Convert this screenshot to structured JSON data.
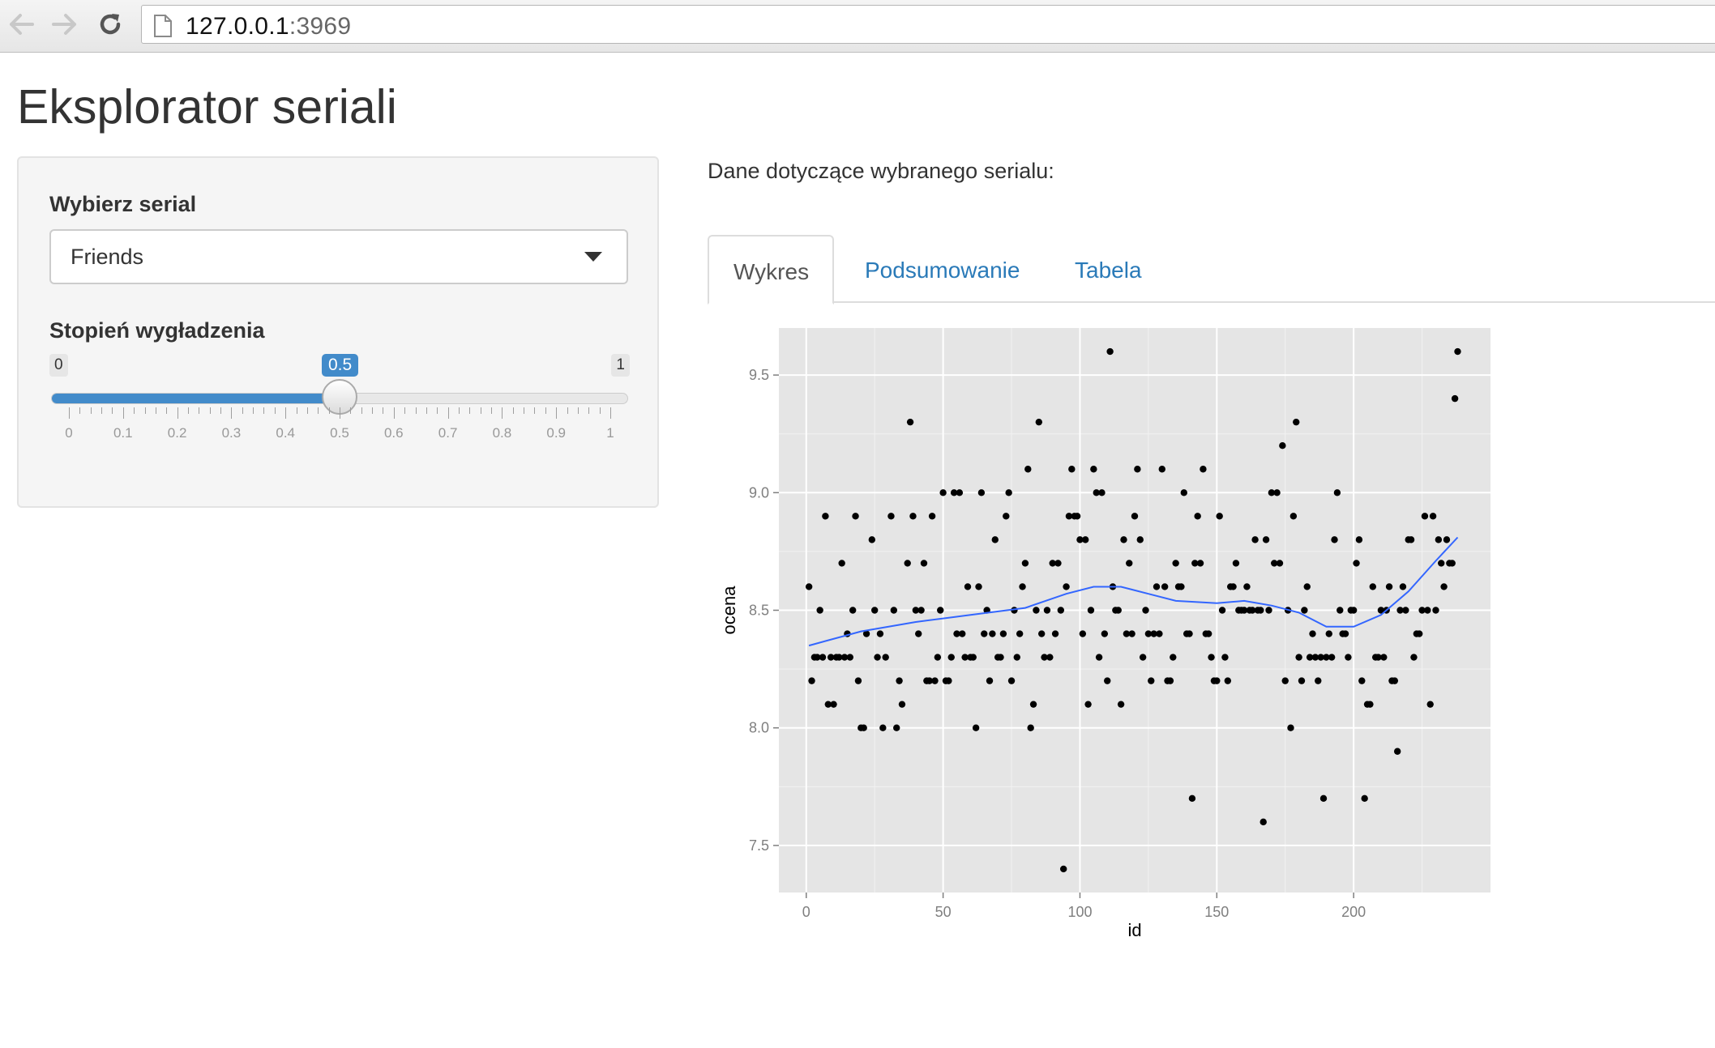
{
  "browser": {
    "url_host": "127.0.0.1",
    "url_port": ":3969"
  },
  "page": {
    "title": "Eksplorator seriali"
  },
  "sidebar": {
    "series_label": "Wybierz serial",
    "series_selected": "Friends",
    "smoothing_label": "Stopień wygładzenia",
    "slider": {
      "min": 0,
      "max": 1,
      "value": 0.5,
      "min_label": "0",
      "max_label": "1",
      "value_label": "0.5",
      "tick_labels": [
        "0",
        "0.1",
        "0.2",
        "0.3",
        "0.4",
        "0.5",
        "0.6",
        "0.7",
        "0.8",
        "0.9",
        "1"
      ]
    }
  },
  "main": {
    "description": "Dane dotyczące wybranego serialu:",
    "tabs": [
      {
        "label": "Wykres",
        "active": true
      },
      {
        "label": "Podsumowanie",
        "active": false
      },
      {
        "label": "Tabela",
        "active": false
      }
    ]
  },
  "colors": {
    "accent": "#428bca",
    "tab_link": "#2a7ab8",
    "plot_panel": "#e5e5e5",
    "points": "#000000",
    "smooth_line": "#3366ff"
  },
  "chart_data": {
    "type": "scatter",
    "xlabel": "id",
    "ylabel": "ocena",
    "xlim": [
      -10,
      250
    ],
    "ylim": [
      7.3,
      9.7
    ],
    "x_ticks": [
      0,
      50,
      100,
      150,
      200
    ],
    "x_tick_labels": [
      "0",
      "50",
      "100",
      "150",
      "200"
    ],
    "y_ticks": [
      7.5,
      8.0,
      8.5,
      9.0,
      9.5
    ],
    "y_tick_labels": [
      "7.5",
      "8.0",
      "8.5",
      "9.0",
      "9.5"
    ],
    "grid": true,
    "points": [
      [
        1,
        8.6
      ],
      [
        2,
        8.2
      ],
      [
        3,
        8.3
      ],
      [
        4,
        8.3
      ],
      [
        5,
        8.5
      ],
      [
        6,
        8.3
      ],
      [
        7,
        8.9
      ],
      [
        8,
        8.1
      ],
      [
        9,
        8.3
      ],
      [
        10,
        8.1
      ],
      [
        11,
        8.3
      ],
      [
        12,
        8.3
      ],
      [
        13,
        8.7
      ],
      [
        14,
        8.3
      ],
      [
        15,
        8.4
      ],
      [
        16,
        8.3
      ],
      [
        17,
        8.5
      ],
      [
        18,
        8.9
      ],
      [
        19,
        8.2
      ],
      [
        20,
        8.0
      ],
      [
        21,
        8.0
      ],
      [
        22,
        8.4
      ],
      [
        24,
        8.8
      ],
      [
        25,
        8.5
      ],
      [
        26,
        8.3
      ],
      [
        27,
        8.4
      ],
      [
        28,
        8.0
      ],
      [
        29,
        8.3
      ],
      [
        31,
        8.9
      ],
      [
        32,
        8.5
      ],
      [
        33,
        8.0
      ],
      [
        34,
        8.2
      ],
      [
        35,
        8.1
      ],
      [
        37,
        8.7
      ],
      [
        38,
        9.3
      ],
      [
        39,
        8.9
      ],
      [
        40,
        8.5
      ],
      [
        41,
        8.4
      ],
      [
        42,
        8.5
      ],
      [
        43,
        8.7
      ],
      [
        44,
        8.2
      ],
      [
        45,
        8.2
      ],
      [
        46,
        8.9
      ],
      [
        47,
        8.2
      ],
      [
        48,
        8.3
      ],
      [
        49,
        8.5
      ],
      [
        50,
        9.0
      ],
      [
        51,
        8.2
      ],
      [
        52,
        8.2
      ],
      [
        53,
        8.3
      ],
      [
        54,
        9.0
      ],
      [
        55,
        8.4
      ],
      [
        56,
        9.0
      ],
      [
        57,
        8.4
      ],
      [
        58,
        8.3
      ],
      [
        59,
        8.6
      ],
      [
        60,
        8.3
      ],
      [
        61,
        8.3
      ],
      [
        62,
        8.0
      ],
      [
        63,
        8.6
      ],
      [
        64,
        9.0
      ],
      [
        65,
        8.4
      ],
      [
        66,
        8.5
      ],
      [
        67,
        8.2
      ],
      [
        68,
        8.4
      ],
      [
        69,
        8.8
      ],
      [
        70,
        8.3
      ],
      [
        71,
        8.3
      ],
      [
        72,
        8.4
      ],
      [
        73,
        8.9
      ],
      [
        74,
        9.0
      ],
      [
        75,
        8.2
      ],
      [
        76,
        8.5
      ],
      [
        77,
        8.3
      ],
      [
        78,
        8.4
      ],
      [
        79,
        8.6
      ],
      [
        80,
        8.7
      ],
      [
        81,
        9.1
      ],
      [
        82,
        8.0
      ],
      [
        83,
        8.1
      ],
      [
        84,
        8.5
      ],
      [
        85,
        9.3
      ],
      [
        86,
        8.4
      ],
      [
        87,
        8.3
      ],
      [
        88,
        8.5
      ],
      [
        89,
        8.3
      ],
      [
        90,
        8.7
      ],
      [
        91,
        8.4
      ],
      [
        92,
        8.7
      ],
      [
        93,
        8.5
      ],
      [
        94,
        7.4
      ],
      [
        95,
        8.6
      ],
      [
        96,
        8.9
      ],
      [
        97,
        9.1
      ],
      [
        98,
        8.9
      ],
      [
        99,
        8.9
      ],
      [
        100,
        8.8
      ],
      [
        101,
        8.4
      ],
      [
        102,
        8.8
      ],
      [
        103,
        8.1
      ],
      [
        104,
        8.5
      ],
      [
        105,
        9.1
      ],
      [
        106,
        9.0
      ],
      [
        107,
        8.3
      ],
      [
        108,
        9.0
      ],
      [
        109,
        8.4
      ],
      [
        110,
        8.2
      ],
      [
        111,
        9.6
      ],
      [
        112,
        8.6
      ],
      [
        113,
        8.5
      ],
      [
        114,
        8.5
      ],
      [
        115,
        8.1
      ],
      [
        116,
        8.8
      ],
      [
        117,
        8.4
      ],
      [
        118,
        8.7
      ],
      [
        119,
        8.4
      ],
      [
        120,
        8.9
      ],
      [
        121,
        9.1
      ],
      [
        122,
        8.8
      ],
      [
        123,
        8.3
      ],
      [
        124,
        8.5
      ],
      [
        125,
        8.4
      ],
      [
        126,
        8.2
      ],
      [
        127,
        8.4
      ],
      [
        128,
        8.6
      ],
      [
        129,
        8.4
      ],
      [
        130,
        9.1
      ],
      [
        131,
        8.6
      ],
      [
        132,
        8.2
      ],
      [
        133,
        8.2
      ],
      [
        134,
        8.3
      ],
      [
        135,
        8.7
      ],
      [
        136,
        8.6
      ],
      [
        137,
        8.6
      ],
      [
        138,
        9.0
      ],
      [
        139,
        8.4
      ],
      [
        140,
        8.4
      ],
      [
        141,
        7.7
      ],
      [
        142,
        8.7
      ],
      [
        143,
        8.9
      ],
      [
        144,
        8.7
      ],
      [
        145,
        9.1
      ],
      [
        146,
        8.4
      ],
      [
        147,
        8.4
      ],
      [
        148,
        8.3
      ],
      [
        149,
        8.2
      ],
      [
        150,
        8.2
      ],
      [
        151,
        8.9
      ],
      [
        152,
        8.5
      ],
      [
        153,
        8.3
      ],
      [
        154,
        8.2
      ],
      [
        155,
        8.6
      ],
      [
        156,
        8.6
      ],
      [
        157,
        8.7
      ],
      [
        158,
        8.5
      ],
      [
        159,
        8.5
      ],
      [
        160,
        8.5
      ],
      [
        161,
        8.6
      ],
      [
        162,
        8.5
      ],
      [
        163,
        8.5
      ],
      [
        164,
        8.8
      ],
      [
        165,
        8.5
      ],
      [
        166,
        8.5
      ],
      [
        167,
        7.6
      ],
      [
        168,
        8.8
      ],
      [
        169,
        8.5
      ],
      [
        170,
        9.0
      ],
      [
        171,
        8.7
      ],
      [
        172,
        9.0
      ],
      [
        173,
        8.7
      ],
      [
        174,
        9.2
      ],
      [
        175,
        8.2
      ],
      [
        176,
        8.5
      ],
      [
        177,
        8.0
      ],
      [
        178,
        8.9
      ],
      [
        179,
        9.3
      ],
      [
        180,
        8.3
      ],
      [
        181,
        8.2
      ],
      [
        182,
        8.5
      ],
      [
        183,
        8.6
      ],
      [
        184,
        8.3
      ],
      [
        185,
        8.4
      ],
      [
        186,
        8.3
      ],
      [
        187,
        8.2
      ],
      [
        188,
        8.3
      ],
      [
        189,
        7.7
      ],
      [
        190,
        8.3
      ],
      [
        191,
        8.4
      ],
      [
        192,
        8.3
      ],
      [
        193,
        8.8
      ],
      [
        194,
        9.0
      ],
      [
        195,
        8.5
      ],
      [
        196,
        8.4
      ],
      [
        197,
        8.4
      ],
      [
        198,
        8.3
      ],
      [
        199,
        8.5
      ],
      [
        200,
        8.5
      ],
      [
        201,
        8.7
      ],
      [
        202,
        8.8
      ],
      [
        203,
        8.2
      ],
      [
        204,
        7.7
      ],
      [
        205,
        8.1
      ],
      [
        206,
        8.1
      ],
      [
        207,
        8.6
      ],
      [
        208,
        8.3
      ],
      [
        209,
        8.3
      ],
      [
        210,
        8.5
      ],
      [
        211,
        8.3
      ],
      [
        212,
        8.5
      ],
      [
        213,
        8.6
      ],
      [
        214,
        8.2
      ],
      [
        215,
        8.2
      ],
      [
        216,
        7.9
      ],
      [
        217,
        8.5
      ],
      [
        218,
        8.6
      ],
      [
        219,
        8.5
      ],
      [
        220,
        8.8
      ],
      [
        221,
        8.8
      ],
      [
        222,
        8.3
      ],
      [
        223,
        8.4
      ],
      [
        224,
        8.4
      ],
      [
        225,
        8.5
      ],
      [
        226,
        8.9
      ],
      [
        227,
        8.5
      ],
      [
        228,
        8.1
      ],
      [
        229,
        8.9
      ],
      [
        230,
        8.5
      ],
      [
        231,
        8.8
      ],
      [
        232,
        8.7
      ],
      [
        233,
        8.6
      ],
      [
        234,
        8.8
      ],
      [
        235,
        8.7
      ],
      [
        236,
        8.7
      ],
      [
        237,
        9.4
      ],
      [
        238,
        9.6
      ]
    ],
    "smooth": {
      "x": [
        1,
        20,
        40,
        60,
        80,
        95,
        105,
        115,
        125,
        135,
        150,
        160,
        170,
        180,
        190,
        200,
        210,
        220,
        230,
        238
      ],
      "y": [
        8.35,
        8.41,
        8.45,
        8.48,
        8.51,
        8.57,
        8.6,
        8.6,
        8.57,
        8.54,
        8.53,
        8.54,
        8.52,
        8.49,
        8.43,
        8.43,
        8.48,
        8.58,
        8.71,
        8.81
      ]
    }
  }
}
